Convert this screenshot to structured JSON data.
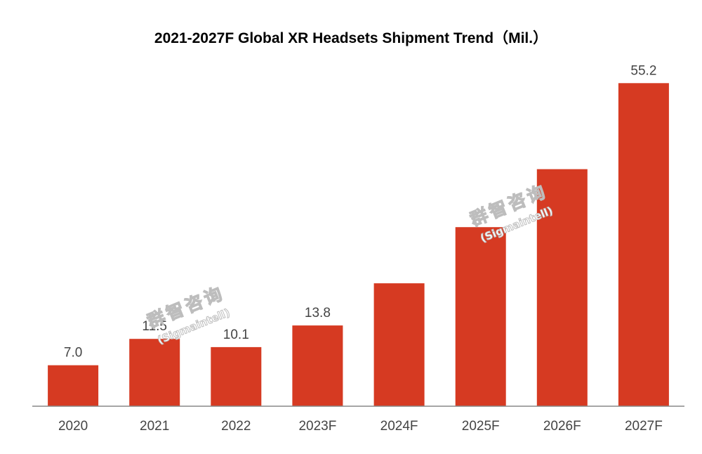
{
  "chart_data": {
    "type": "bar",
    "title": "2021-2027F Global XR Headsets Shipment Trend（Mil.）",
    "categories": [
      "2020",
      "2021",
      "2022",
      "2023F",
      "2024F",
      "2025F",
      "2026F",
      "2027F"
    ],
    "values": [
      7.0,
      11.5,
      10.1,
      13.8,
      21.0,
      30.6,
      40.5,
      55.2
    ],
    "data_labels": [
      "7.0",
      "11.5",
      "10.1",
      "13.8",
      null,
      null,
      null,
      "55.2"
    ],
    "xlabel": "",
    "ylabel": "",
    "ylim": [
      0,
      61
    ],
    "grid": false,
    "legend": "none",
    "bar_color": "#d63a22"
  },
  "watermark": {
    "line1": "群智咨询",
    "line2": "(Sigmaintell)"
  }
}
